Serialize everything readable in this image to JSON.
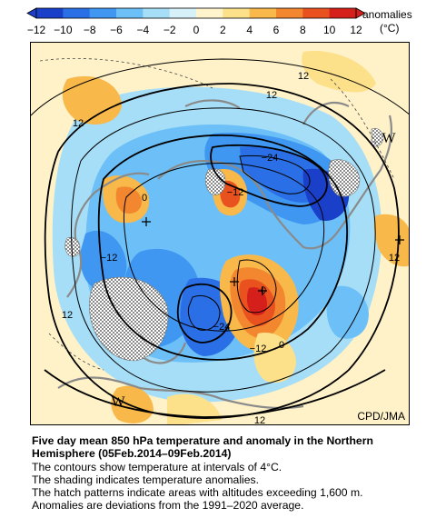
{
  "colorbar": {
    "tick_labels": [
      "−12",
      "−10",
      "−8",
      "−6",
      "−4",
      "−2",
      "0",
      "2",
      "4",
      "6",
      "8",
      "10",
      "12"
    ],
    "label_line1": "anomalies",
    "label_line2": "(°C)",
    "colors": [
      "#1a3fc8",
      "#2b6fe6",
      "#3f97f2",
      "#6cc0f7",
      "#a6def7",
      "#d6f1f7",
      "#fff4cc",
      "#fde08a",
      "#f8b84a",
      "#f3872f",
      "#e9521f",
      "#d41f1a"
    ]
  },
  "map": {
    "contour_labels": [
      "12",
      "12",
      "12",
      "−24",
      "−12",
      "0",
      "−12",
      "12",
      "0",
      "−24",
      "−12",
      "0",
      "12",
      "12"
    ],
    "high_markers": [
      "W",
      "W",
      "W"
    ],
    "credit": "CPD/JMA"
  },
  "caption": {
    "title_line1": "Five day mean 850 hPa temperature and anomaly in the Northern",
    "title_line2": "Hemisphere (05Feb.2014–09Feb.2014)",
    "lines": [
      "The contours show temperature at intervals of 4°C.",
      "The shading indicates temperature anomalies.",
      "The hatch patterns indicate areas with altitudes exceeding 1,600 m.",
      "Anomalies are deviations from the 1991–2020 average."
    ]
  }
}
